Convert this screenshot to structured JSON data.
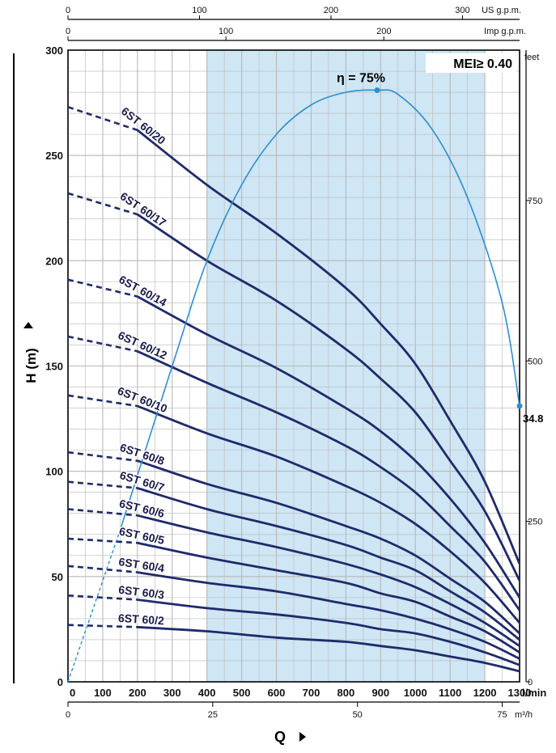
{
  "chart_data": {
    "type": "line",
    "xlabel": "Q",
    "ylabel": "H (m)",
    "x_unit_primary": "l/min",
    "x_unit_bottom": "m³/h",
    "x_unit_top1": "US g.p.m.",
    "x_unit_top2": "Imp g.p.m.",
    "y_unit_right": "feet",
    "xlim": [
      0,
      1300
    ],
    "ylim": [
      0,
      300
    ],
    "grid": true,
    "x_ticks": [
      0,
      100,
      200,
      300,
      400,
      500,
      600,
      700,
      800,
      900,
      1000,
      1100,
      1200,
      1300
    ],
    "y_ticks": [
      0,
      50,
      100,
      150,
      200,
      250,
      300
    ],
    "feet_ticks": [
      0,
      250,
      500,
      750
    ],
    "m3h_ticks": [
      0,
      25,
      50,
      75
    ],
    "usgpm_ticks": [
      0,
      100,
      200,
      300
    ],
    "impgpm_ticks": [
      0,
      100,
      200
    ],
    "mei_label": "MEI≥ 0.40",
    "efficiency": {
      "label": "η = 75%",
      "end_label": "34.8",
      "points": [
        [
          0,
          0
        ],
        [
          150,
          72
        ],
        [
          300,
          150
        ],
        [
          400,
          200
        ],
        [
          500,
          236
        ],
        [
          600,
          260
        ],
        [
          700,
          274
        ],
        [
          800,
          280
        ],
        [
          890,
          281
        ],
        [
          950,
          279
        ],
        [
          1050,
          262
        ],
        [
          1150,
          230
        ],
        [
          1250,
          180
        ],
        [
          1300,
          131
        ]
      ],
      "peak": [
        890,
        281
      ],
      "end": [
        1300,
        131
      ]
    },
    "recommended_range": [
      400,
      1200
    ],
    "series": [
      {
        "name": "6ST 60/20",
        "values": [
          [
            0,
            273
          ],
          [
            200,
            262
          ],
          [
            400,
            236
          ],
          [
            600,
            213
          ],
          [
            800,
            187
          ],
          [
            900,
            170
          ],
          [
            1000,
            151
          ],
          [
            1100,
            124
          ],
          [
            1200,
            95
          ],
          [
            1300,
            56
          ]
        ]
      },
      {
        "name": "6ST 60/17",
        "values": [
          [
            0,
            232
          ],
          [
            200,
            222
          ],
          [
            400,
            200
          ],
          [
            600,
            181
          ],
          [
            800,
            158
          ],
          [
            900,
            144
          ],
          [
            1000,
            128
          ],
          [
            1100,
            105
          ],
          [
            1200,
            81
          ],
          [
            1300,
            48
          ]
        ]
      },
      {
        "name": "6ST 60/14",
        "values": [
          [
            0,
            191
          ],
          [
            200,
            183
          ],
          [
            400,
            165
          ],
          [
            600,
            149
          ],
          [
            800,
            130
          ],
          [
            900,
            119
          ],
          [
            1000,
            105
          ],
          [
            1100,
            87
          ],
          [
            1200,
            66
          ],
          [
            1300,
            40
          ]
        ]
      },
      {
        "name": "6ST 60/12",
        "values": [
          [
            0,
            164
          ],
          [
            200,
            157
          ],
          [
            400,
            142
          ],
          [
            600,
            128
          ],
          [
            800,
            112
          ],
          [
            900,
            102
          ],
          [
            1000,
            90
          ],
          [
            1100,
            74
          ],
          [
            1200,
            57
          ],
          [
            1300,
            34
          ]
        ]
      },
      {
        "name": "6ST 60/10",
        "values": [
          [
            0,
            136
          ],
          [
            200,
            131
          ],
          [
            400,
            118
          ],
          [
            600,
            107
          ],
          [
            800,
            93
          ],
          [
            900,
            85
          ],
          [
            1000,
            75
          ],
          [
            1100,
            62
          ],
          [
            1200,
            47
          ],
          [
            1300,
            28
          ]
        ]
      },
      {
        "name": "6ST 60/8",
        "values": [
          [
            0,
            109
          ],
          [
            200,
            105
          ],
          [
            400,
            94
          ],
          [
            600,
            85
          ],
          [
            800,
            74
          ],
          [
            900,
            68
          ],
          [
            1000,
            60
          ],
          [
            1100,
            49
          ],
          [
            1200,
            38
          ],
          [
            1300,
            23
          ]
        ]
      },
      {
        "name": "6ST 60/7",
        "values": [
          [
            0,
            95
          ],
          [
            200,
            92
          ],
          [
            400,
            82
          ],
          [
            600,
            74
          ],
          [
            800,
            65
          ],
          [
            900,
            59
          ],
          [
            1000,
            53
          ],
          [
            1100,
            43
          ],
          [
            1200,
            33
          ],
          [
            1300,
            20
          ]
        ]
      },
      {
        "name": "6ST 60/6",
        "values": [
          [
            0,
            82
          ],
          [
            200,
            79
          ],
          [
            400,
            71
          ],
          [
            600,
            64
          ],
          [
            800,
            56
          ],
          [
            900,
            51
          ],
          [
            1000,
            45
          ],
          [
            1100,
            37
          ],
          [
            1200,
            28
          ],
          [
            1300,
            17
          ]
        ]
      },
      {
        "name": "6ST 60/5",
        "values": [
          [
            0,
            68
          ],
          [
            200,
            66
          ],
          [
            400,
            59
          ],
          [
            600,
            53
          ],
          [
            800,
            47
          ],
          [
            900,
            42
          ],
          [
            1000,
            38
          ],
          [
            1100,
            31
          ],
          [
            1200,
            24
          ],
          [
            1300,
            14
          ]
        ]
      },
      {
        "name": "6ST 60/4",
        "values": [
          [
            0,
            55
          ],
          [
            200,
            52
          ],
          [
            400,
            47
          ],
          [
            600,
            43
          ],
          [
            800,
            37
          ],
          [
            900,
            34
          ],
          [
            1000,
            30
          ],
          [
            1100,
            25
          ],
          [
            1200,
            19
          ],
          [
            1300,
            11
          ]
        ]
      },
      {
        "name": "6ST 60/3",
        "values": [
          [
            0,
            41
          ],
          [
            200,
            39
          ],
          [
            400,
            35
          ],
          [
            600,
            32
          ],
          [
            800,
            28
          ],
          [
            900,
            25
          ],
          [
            1000,
            23
          ],
          [
            1100,
            19
          ],
          [
            1200,
            14
          ],
          [
            1300,
            8
          ]
        ]
      },
      {
        "name": "6ST 60/2",
        "values": [
          [
            0,
            27
          ],
          [
            200,
            26
          ],
          [
            400,
            24
          ],
          [
            600,
            21
          ],
          [
            800,
            19
          ],
          [
            900,
            17
          ],
          [
            1000,
            15
          ],
          [
            1100,
            12
          ],
          [
            1200,
            9
          ],
          [
            1300,
            5
          ]
        ]
      }
    ],
    "colors": {
      "curve": "#1f2a6b",
      "efficiency": "#2b8fd0",
      "band": "#cfe6f5",
      "grid": "#b8b8b8"
    }
  }
}
